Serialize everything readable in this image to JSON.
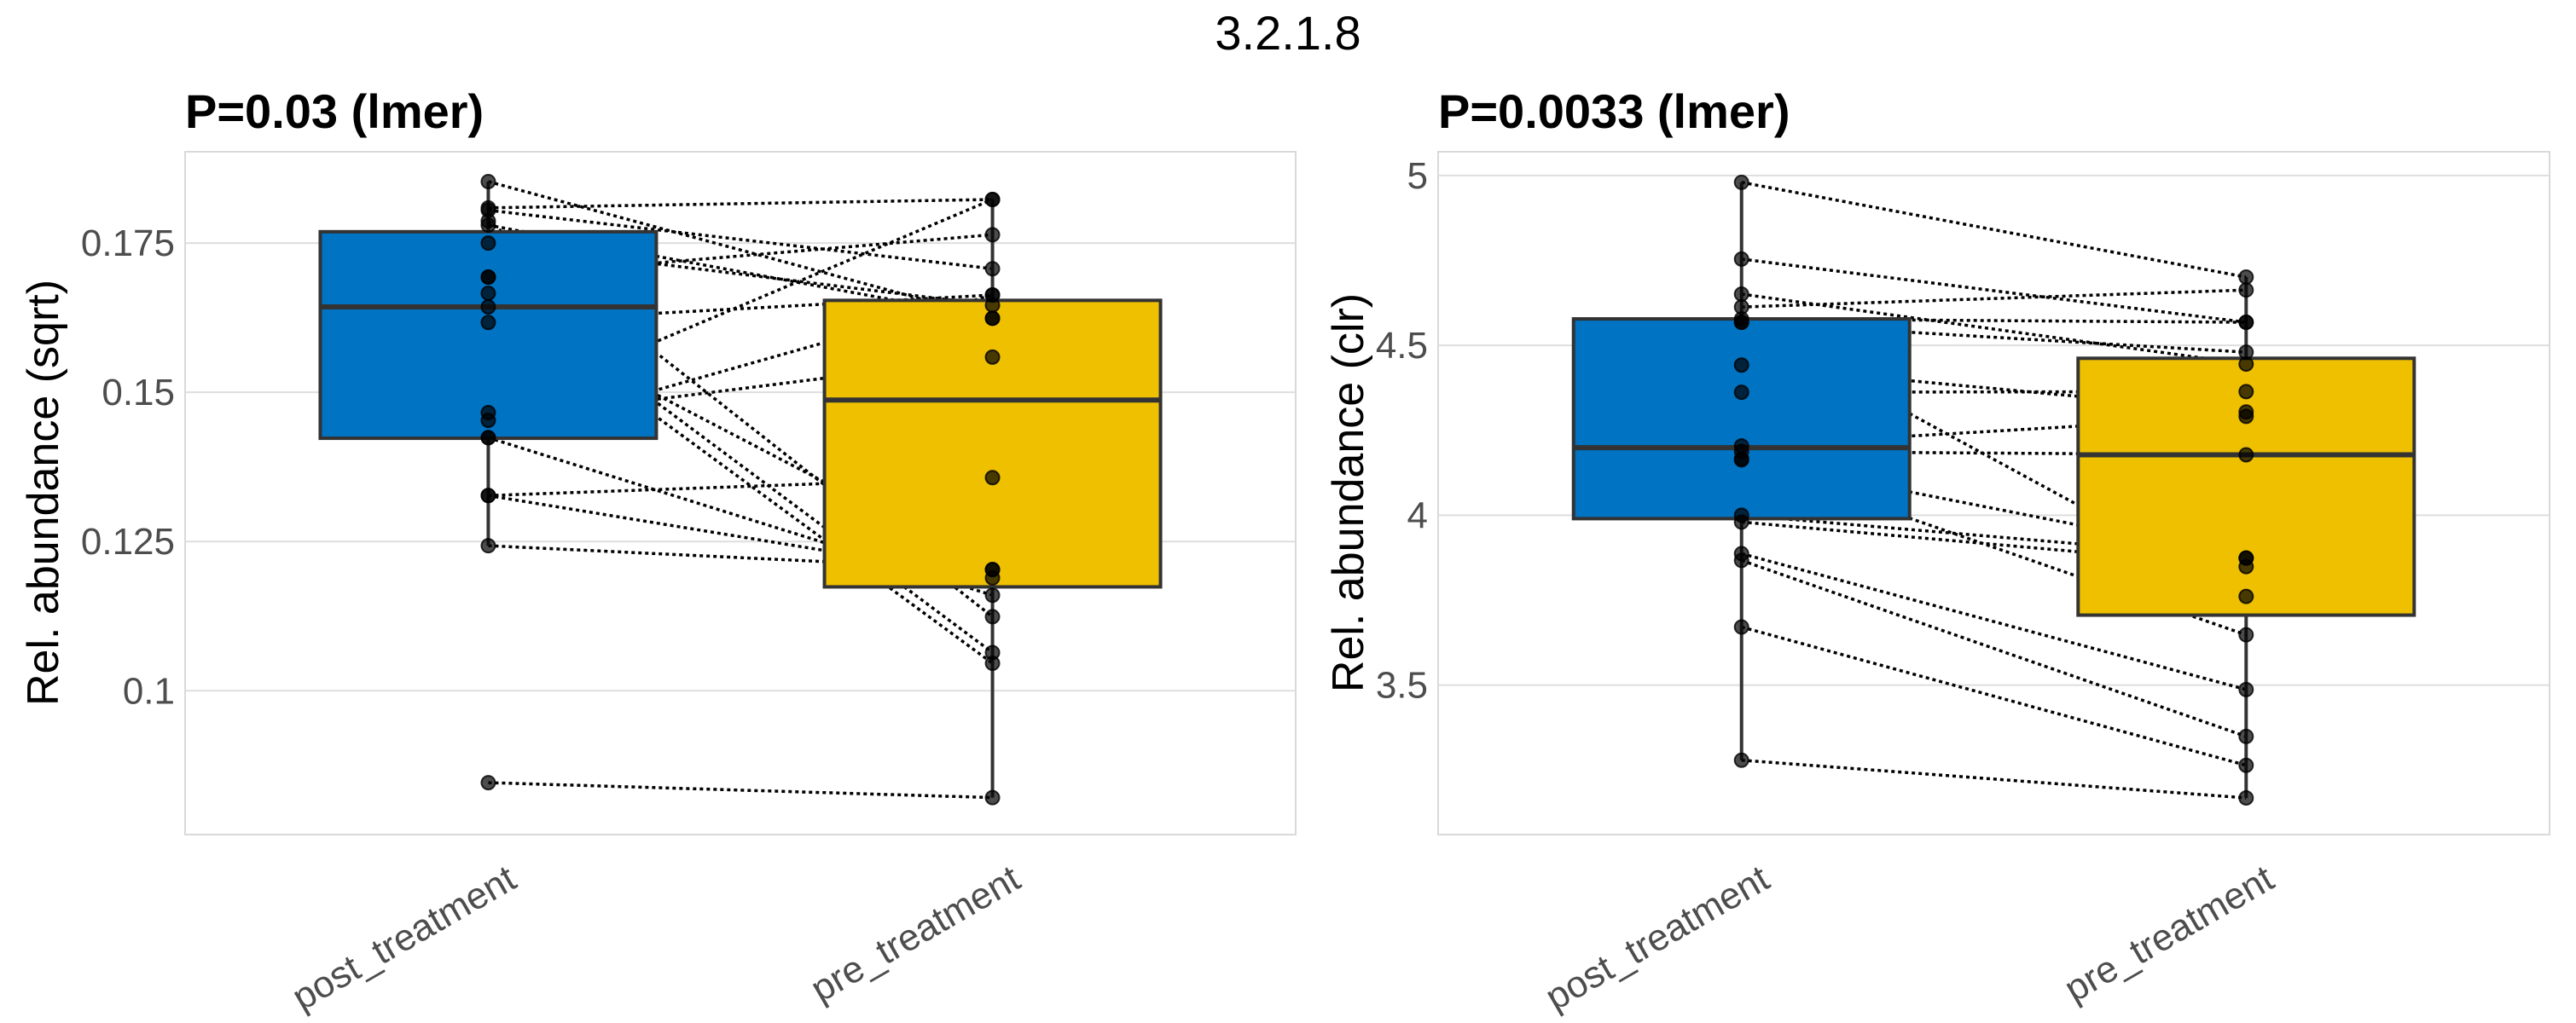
{
  "figure": {
    "title": "3.2.1.8"
  },
  "colors": {
    "post_treatment": "#0073C2",
    "pre_treatment": "#EFC000"
  },
  "chart_data": [
    {
      "type": "boxplot",
      "title": "P=0.03 (lmer)",
      "xlabel": "",
      "ylabel": "Rel. abundance (sqrt)",
      "categories": [
        "post_treatment",
        "pre_treatment"
      ],
      "ylim": [
        0.0759,
        0.1903
      ],
      "yticks": [
        0.1,
        0.125,
        0.15,
        0.175
      ],
      "ytick_labels": [
        "0.1",
        "0.125",
        "0.15",
        "0.175"
      ],
      "grid": true,
      "legend": "none",
      "boxes": [
        {
          "group": "post_treatment",
          "whisker_low": 0.1243,
          "q1": 0.1423,
          "median": 0.1643,
          "q3": 0.1769,
          "whisker_high": 0.1853
        },
        {
          "group": "pre_treatment",
          "whisker_low": 0.0821,
          "q1": 0.1174,
          "median": 0.1487,
          "q3": 0.1654,
          "whisker_high": 0.1823
        }
      ],
      "pairs": [
        [
          0.1853,
          0.1624
        ],
        [
          0.1809,
          0.1823
        ],
        [
          0.1805,
          0.1707
        ],
        [
          0.1787,
          0.1124
        ],
        [
          0.178,
          0.1624
        ],
        [
          0.175,
          0.1646
        ],
        [
          0.1693,
          0.1764
        ],
        [
          0.1693,
          0.1064
        ],
        [
          0.1666,
          0.1046
        ],
        [
          0.1643,
          0.1203
        ],
        [
          0.1617,
          0.1663
        ],
        [
          0.1466,
          0.1823
        ],
        [
          0.1453,
          0.1559
        ],
        [
          0.1424,
          0.1663
        ],
        [
          0.1424,
          0.116
        ],
        [
          0.1327,
          0.1357
        ],
        [
          0.1327,
          0.1189
        ],
        [
          0.1243,
          0.1203
        ],
        [
          0.0846,
          0.0821
        ]
      ]
    },
    {
      "type": "boxplot",
      "title": "P=0.0033 (lmer)",
      "xlabel": "",
      "ylabel": "Rel. abundance (clr)",
      "categories": [
        "post_treatment",
        "pre_treatment"
      ],
      "ylim": [
        3.06,
        5.07
      ],
      "yticks": [
        3.5,
        4,
        4.5,
        5
      ],
      "ytick_labels": [
        "3.5",
        "4",
        "4.5",
        "5"
      ],
      "grid": true,
      "legend": "none",
      "boxes": [
        {
          "group": "post_treatment",
          "whisker_low": 3.279,
          "q1": 3.99,
          "median": 4.199,
          "q3": 4.578,
          "whisker_high": 4.98
        },
        {
          "group": "pre_treatment",
          "whisker_low": 3.168,
          "q1": 3.706,
          "median": 4.178,
          "q3": 4.462,
          "whisker_high": 4.701
        }
      ],
      "pairs": [
        [
          4.98,
          4.701
        ],
        [
          4.754,
          4.568
        ],
        [
          4.651,
          4.445
        ],
        [
          4.613,
          4.663
        ],
        [
          4.578,
          4.568
        ],
        [
          4.568,
          4.48
        ],
        [
          4.568,
          3.761
        ],
        [
          4.442,
          4.304
        ],
        [
          4.362,
          4.364
        ],
        [
          4.204,
          4.291
        ],
        [
          4.188,
          4.178
        ],
        [
          4.166,
          3.874
        ],
        [
          4.163,
          3.648
        ],
        [
          4.0,
          3.874
        ],
        [
          3.98,
          3.849
        ],
        [
          3.887,
          3.487
        ],
        [
          3.867,
          3.349
        ],
        [
          3.671,
          3.264
        ],
        [
          3.279,
          3.168
        ]
      ]
    }
  ]
}
